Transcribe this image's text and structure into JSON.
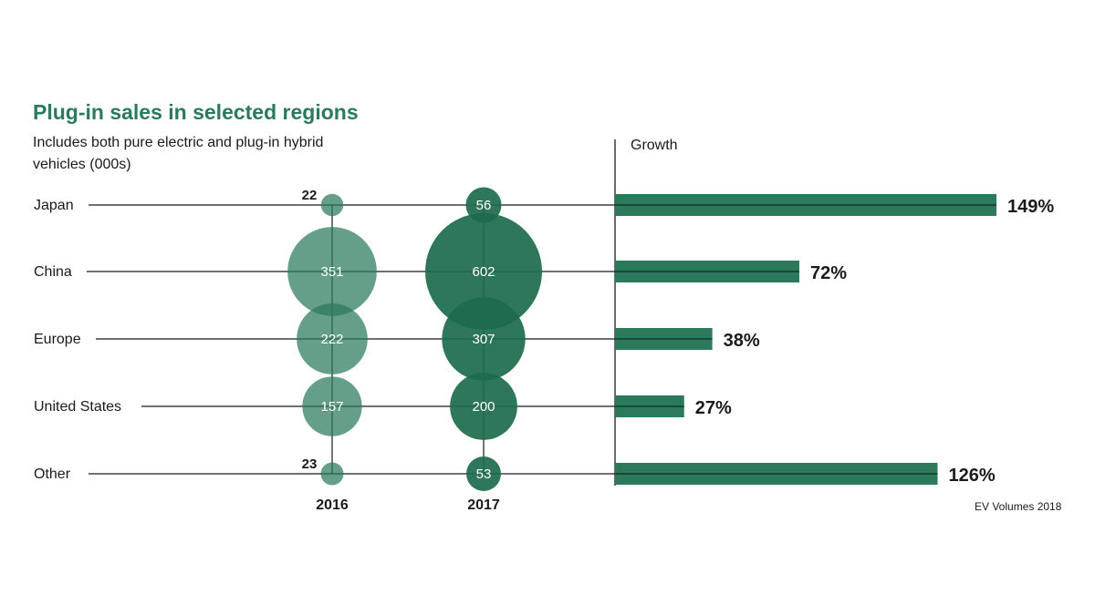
{
  "chart_data": {
    "type": "bubble-and-bar",
    "title": "Plug-in sales in selected regions",
    "subtitle": "Includes both pure electric and plug-in hybrid vehicles (000s)",
    "growth_label": "Growth",
    "source": "EV Volumes 2018",
    "years": [
      "2016",
      "2017"
    ],
    "regions": [
      {
        "name": "Japan",
        "sales_2016": 22,
        "sales_2017": 56,
        "growth": 149,
        "growth_label": "149%"
      },
      {
        "name": "China",
        "sales_2016": 351,
        "sales_2017": 602,
        "growth": 72,
        "growth_label": "72%"
      },
      {
        "name": "Europe",
        "sales_2016": 222,
        "sales_2017": 307,
        "growth": 38,
        "growth_label": "38%"
      },
      {
        "name": "United States",
        "sales_2016": 157,
        "sales_2017": 200,
        "growth": 27,
        "growth_label": "27%"
      },
      {
        "name": "Other",
        "sales_2016": 23,
        "sales_2017": 53,
        "growth": 126,
        "growth_label": "126%"
      }
    ],
    "colors": {
      "y2016": "#2b7a5c",
      "y2017": "#1d6b4c",
      "bar": "#2b7a5c",
      "title": "#2b7a5c"
    }
  }
}
